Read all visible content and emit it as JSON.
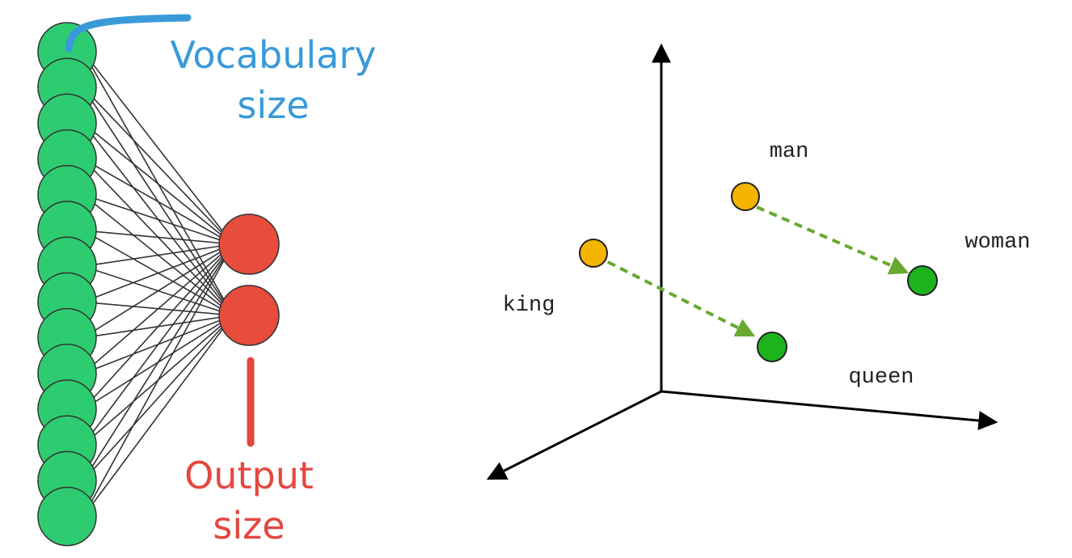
{
  "network": {
    "input_label_line1": "Vocabulary",
    "input_label_line2": "size",
    "output_label_line1": "Output",
    "output_label_line2": "size",
    "input_node_count": 14,
    "output_node_count": 2,
    "colors": {
      "input_node": "#2ecc71",
      "output_node": "#e74c3c",
      "input_label": "#3a9ad9",
      "output_label": "#e5473f",
      "edge": "#333333"
    }
  },
  "embedding_space": {
    "words": {
      "man": "man",
      "woman": "woman",
      "king": "king",
      "queen": "queen"
    },
    "colors": {
      "male_point": "#f5b400",
      "female_point": "#1db31d",
      "arrow": "#6aa832",
      "axis": "#000000"
    }
  }
}
